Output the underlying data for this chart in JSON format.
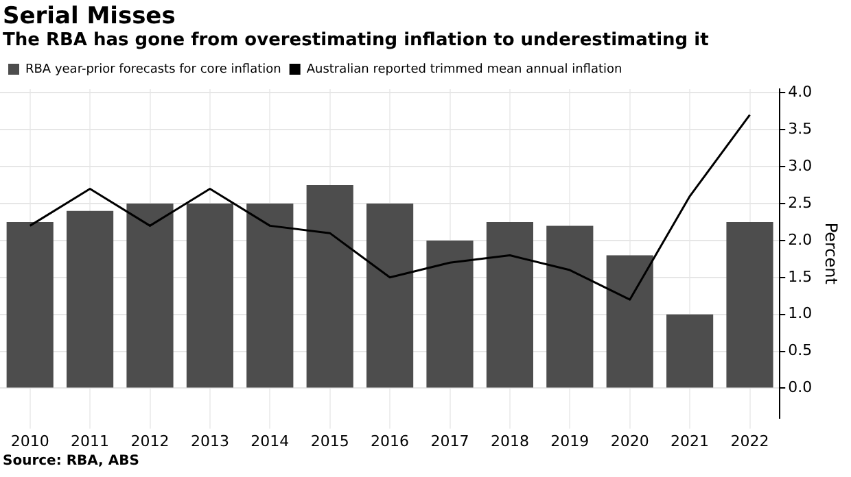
{
  "chart_data": {
    "type": "bar",
    "title": "Serial Misses",
    "subtitle": "The RBA has gone from overestimating inflation to underestimating it",
    "ylabel": "Percent",
    "annotations": [
      "Source: RBA, ABS"
    ],
    "categories": [
      "2010",
      "2011",
      "2012",
      "2013",
      "2014",
      "2015",
      "2016",
      "2017",
      "2018",
      "2019",
      "2020",
      "2021",
      "2022"
    ],
    "series": [
      {
        "name": "RBA year-prior forecasts for core inflation",
        "color": "#4d4d4d",
        "values": [
          2.25,
          2.4,
          2.5,
          2.5,
          2.5,
          2.75,
          2.5,
          2.0,
          2.25,
          2.2,
          1.8,
          1.0,
          2.25
        ]
      },
      {
        "name": "Australian reported trimmed mean annual inflation",
        "type": "line",
        "color": "#000000",
        "values": [
          2.2,
          2.7,
          2.2,
          2.7,
          2.2,
          2.1,
          1.5,
          1.7,
          1.8,
          1.6,
          1.2,
          2.6,
          3.7
        ]
      }
    ],
    "ylim": [
      -0.4,
      4.05
    ],
    "yticks": [
      {
        "value": 0,
        "label": "0.0"
      },
      {
        "value": 0.5,
        "label": "0.5"
      },
      {
        "value": 1,
        "label": "1.0"
      },
      {
        "value": 1.5,
        "label": "1.5"
      },
      {
        "value": 2,
        "label": "2.0"
      },
      {
        "value": 2.5,
        "label": "2.5"
      },
      {
        "value": 3,
        "label": "3.0"
      },
      {
        "value": 3.5,
        "label": "3.5"
      },
      {
        "value": 4,
        "label": "4.0"
      }
    ],
    "grid": true,
    "legend": "top left",
    "marker": "none",
    "line_style": "solid"
  }
}
